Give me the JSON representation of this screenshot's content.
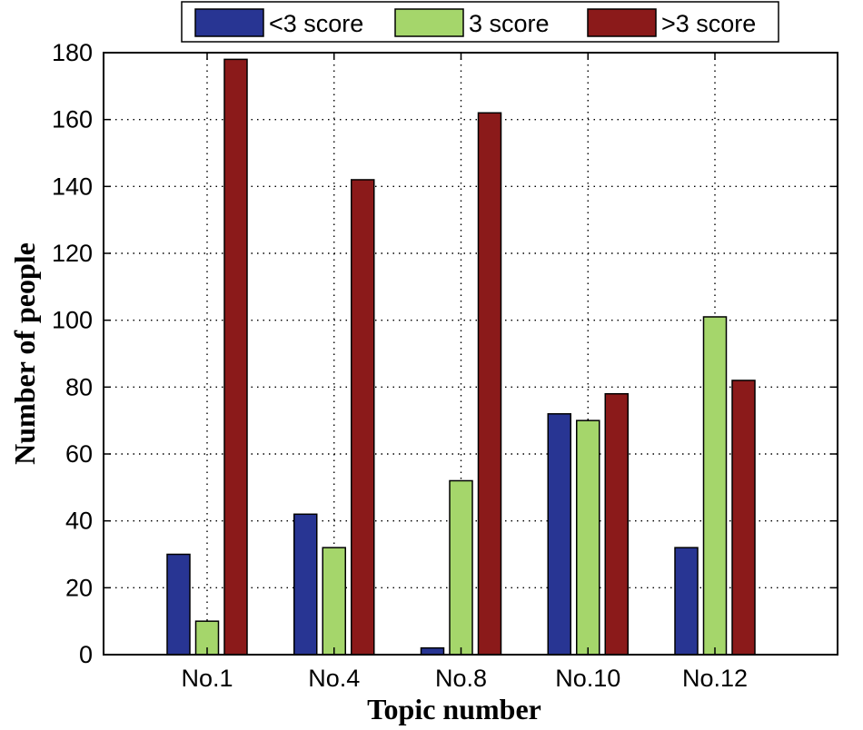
{
  "chart_data": {
    "type": "bar",
    "title": "",
    "xlabel": "Topic number",
    "ylabel": "Number of people",
    "categories": [
      "No.1",
      "No.4",
      "No.8",
      "No.10",
      "No.12"
    ],
    "series": [
      {
        "name": "<3 score",
        "color": "#283593",
        "values": [
          30,
          42,
          2,
          72,
          32
        ]
      },
      {
        "name": "3 score",
        "color": "#A5D66B",
        "values": [
          10,
          32,
          52,
          70,
          101
        ]
      },
      {
        "name": ">3 score",
        "color": "#8B1A1A",
        "values": [
          178,
          142,
          162,
          78,
          82
        ]
      }
    ],
    "ylim": [
      0,
      180
    ],
    "yticks": [
      0,
      20,
      40,
      60,
      80,
      100,
      120,
      140,
      160,
      180
    ],
    "grid": true,
    "legend_position": "top"
  }
}
